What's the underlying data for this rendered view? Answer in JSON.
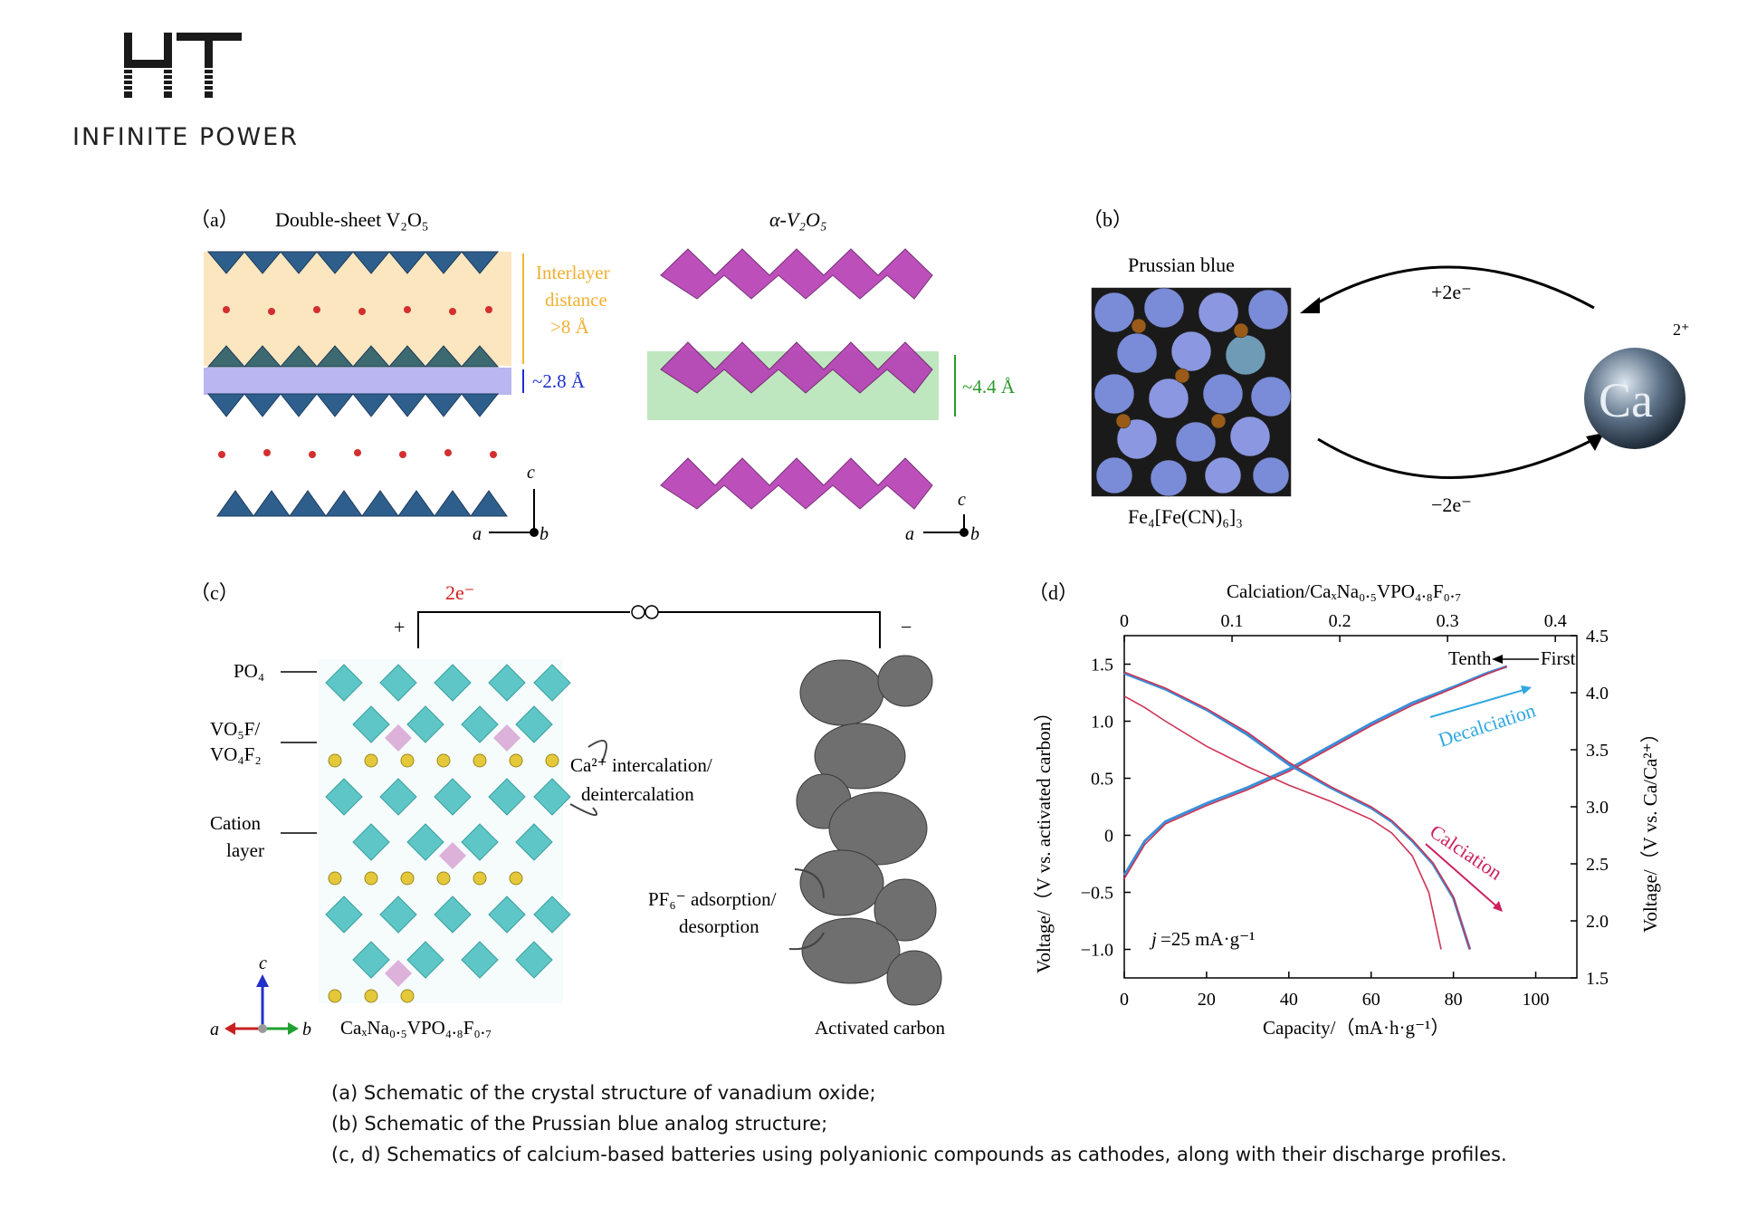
{
  "logo": {
    "mark": "HT",
    "tagline": "INFINITE POWER"
  },
  "panel_a": {
    "label": "（a）",
    "left_title": "Double-sheet V₂O₅",
    "right_title": "α-V₂O₅",
    "interlayer_1": "Interlayer",
    "interlayer_2": "distance",
    "interlayer_3": ">8 Å",
    "gap_small": "~2.8 Å",
    "gap_alpha": "~4.4 Å",
    "axis_c": "c",
    "axis_a": "a",
    "axis_b": "b"
  },
  "panel_b": {
    "label": "（b）",
    "title": "Prussian blue",
    "formula": "Fe₄[Fe(CN)₆]₃",
    "charge_top": "+2e⁻",
    "charge_bottom": "−2e⁻",
    "ion": "Ca",
    "ion_charge": "2⁺"
  },
  "panel_c": {
    "label": "（c）",
    "electrons": "2e⁻",
    "plus": "+",
    "minus": "−",
    "po4": "PO₄",
    "vo5f_1": "VO₅F/",
    "vo5f_2": "VO₄F₂",
    "cation_1": "Cation",
    "cation_2": "layer",
    "ca_intercal_1": "Ca²⁺ intercalation/",
    "ca_intercal_2": "deintercalation",
    "pf6_1": "PF₆⁻ adsorption/",
    "pf6_2": "desorption",
    "cathode": "CaₓNa₀.₅VPO₄.₈F₀.₇",
    "anode": "Activated carbon",
    "axis_c": "c",
    "axis_a": "a",
    "axis_b": "b"
  },
  "panel_d": {
    "label": "（d）"
  },
  "chart_data": {
    "type": "line",
    "xlabel": "Capacity/（mA·h·g⁻¹）",
    "top_xlabel": "Calciation/CaₓNa₀.₅VPO₄.₈F₀.₇",
    "ylabel": "Voltage/（V vs. activated carbon）",
    "right_ylabel": "Voltage/（V vs. Ca/Ca²⁺）",
    "xlim": [
      0,
      110
    ],
    "ylim": [
      -1.25,
      1.75
    ],
    "top_xlim": [
      0,
      0.42
    ],
    "right_ylim": [
      1.5,
      4.5
    ],
    "x_ticks": [
      "0",
      "20",
      "40",
      "60",
      "80",
      "100"
    ],
    "y_ticks": [
      "−1.0",
      "−0.5",
      "0",
      "0.5",
      "1.0",
      "1.5"
    ],
    "top_ticks": [
      "0",
      "0.1",
      "0.2",
      "0.3",
      "0.4"
    ],
    "right_ticks": [
      "1.5",
      "2.0",
      "2.5",
      "3.0",
      "3.5",
      "4.0",
      "4.5"
    ],
    "annotations": {
      "tenth": "Tenth",
      "first": "First",
      "decalciation": "Decalciation",
      "calciation": "Calciation",
      "current_j": "j",
      "current_value": "=25 mA·g⁻¹"
    },
    "series": [
      {
        "color": "#3a8fd8",
        "x": [
          0,
          5,
          10,
          20,
          30,
          40,
          50,
          60,
          70,
          80,
          88,
          93
        ],
        "y": [
          -0.35,
          -0.05,
          0.12,
          0.28,
          0.42,
          0.58,
          0.78,
          0.98,
          1.16,
          1.3,
          1.42,
          1.48
        ]
      },
      {
        "color": "#cc3355",
        "x": [
          0,
          5,
          10,
          20,
          30,
          40,
          50,
          60,
          70,
          80,
          88,
          93
        ],
        "y": [
          -0.38,
          -0.08,
          0.1,
          0.26,
          0.4,
          0.56,
          0.76,
          0.96,
          1.14,
          1.29,
          1.41,
          1.48
        ]
      },
      {
        "color": "#3a8fd8",
        "x": [
          0,
          5,
          10,
          20,
          30,
          40,
          50,
          60,
          65,
          70,
          75,
          80,
          84
        ],
        "y": [
          1.42,
          1.35,
          1.28,
          1.1,
          0.88,
          0.62,
          0.42,
          0.24,
          0.12,
          -0.05,
          -0.25,
          -0.55,
          -1.0
        ]
      },
      {
        "color": "#cc3355",
        "x": [
          0,
          5,
          10,
          20,
          30,
          40,
          50,
          60,
          65,
          70,
          75,
          80,
          84
        ],
        "y": [
          1.43,
          1.36,
          1.29,
          1.11,
          0.9,
          0.64,
          0.43,
          0.25,
          0.13,
          -0.04,
          -0.24,
          -0.54,
          -1.0
        ]
      },
      {
        "color": "#cc3355",
        "x": [
          0,
          5,
          10,
          20,
          30,
          40,
          50,
          60,
          65,
          70,
          74,
          77
        ],
        "y": [
          1.22,
          1.12,
          1.0,
          0.78,
          0.6,
          0.44,
          0.3,
          0.14,
          0.02,
          -0.18,
          -0.5,
          -1.0
        ]
      }
    ]
  },
  "caption": {
    "line1": "(a) Schematic of the crystal structure of vanadium oxide;",
    "line2": "(b) Schematic of the Prussian blue analog structure;",
    "line3": "(c, d) Schematics of calcium-based batteries using polyanionic compounds as cathodes, along with their discharge profiles."
  }
}
